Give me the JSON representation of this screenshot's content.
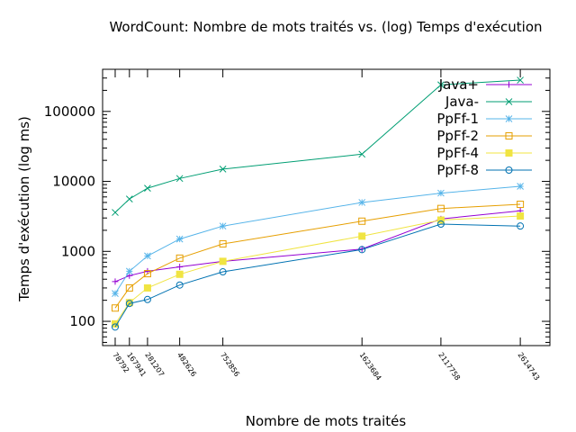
{
  "chart_data": {
    "type": "line",
    "title": "WordCount: Nombre de mots traités vs. (log) Temps d'exécution",
    "xlabel": "Nombre de mots traités",
    "ylabel": "Temps d'exécution (log ms)",
    "yscale": "log",
    "ylim": [
      45,
      400000
    ],
    "xlim": [
      0,
      2800000
    ],
    "x": [
      78792,
      167941,
      281207,
      482626,
      752856,
      1623684,
      2117758,
      2614743
    ],
    "x_tick_labels": [
      "78792",
      "167941",
      "281207",
      "482626",
      "752856",
      "1623684",
      "2117758",
      "2614743"
    ],
    "y_ticks": [
      100,
      1000,
      10000,
      100000
    ],
    "y_tick_labels": [
      "100",
      "1000",
      "10000",
      "100000"
    ],
    "grid": false,
    "legend_position": "top-right",
    "series": [
      {
        "name": "Java+",
        "color": "#9400d3",
        "marker": "plus",
        "x": [
          78792,
          167941,
          281207,
          482626,
          752856,
          1623684,
          2117758,
          2614743
        ],
        "values": [
          370,
          450,
          520,
          600,
          720,
          1080,
          2900,
          3800
        ]
      },
      {
        "name": "Java-",
        "color": "#009e73",
        "marker": "cross",
        "x": [
          78792,
          167941,
          281207,
          482626,
          752856,
          1623684,
          2117758,
          2614743
        ],
        "values": [
          3600,
          5600,
          8000,
          11000,
          15000,
          24500,
          240000,
          280000
        ]
      },
      {
        "name": "PpFf-1",
        "color": "#56b4e9",
        "marker": "star",
        "x": [
          78792,
          167941,
          281207,
          482626,
          752856,
          1623684,
          2117758,
          2614743
        ],
        "values": [
          250,
          520,
          860,
          1500,
          2300,
          5000,
          6800,
          8500
        ]
      },
      {
        "name": "PpFf-2",
        "color": "#e69f00",
        "marker": "square",
        "x": [
          78792,
          167941,
          281207,
          482626,
          752856,
          1623684,
          2117758,
          2614743
        ],
        "values": [
          155,
          300,
          480,
          800,
          1280,
          2700,
          4100,
          4700
        ]
      },
      {
        "name": "PpFf-4",
        "color": "#f0e442",
        "marker": "filled-square",
        "x": [
          78792,
          167941,
          281207,
          482626,
          752856,
          1623684,
          2117758,
          2614743
        ],
        "values": [
          92,
          185,
          300,
          470,
          720,
          1650,
          2800,
          3200
        ]
      },
      {
        "name": "PpFf-8",
        "color": "#0072b2",
        "marker": "circle",
        "x": [
          78792,
          167941,
          281207,
          482626,
          752856,
          1623684,
          2117758,
          2614743
        ],
        "values": [
          83,
          180,
          205,
          330,
          510,
          1060,
          2450,
          2300
        ]
      }
    ]
  }
}
